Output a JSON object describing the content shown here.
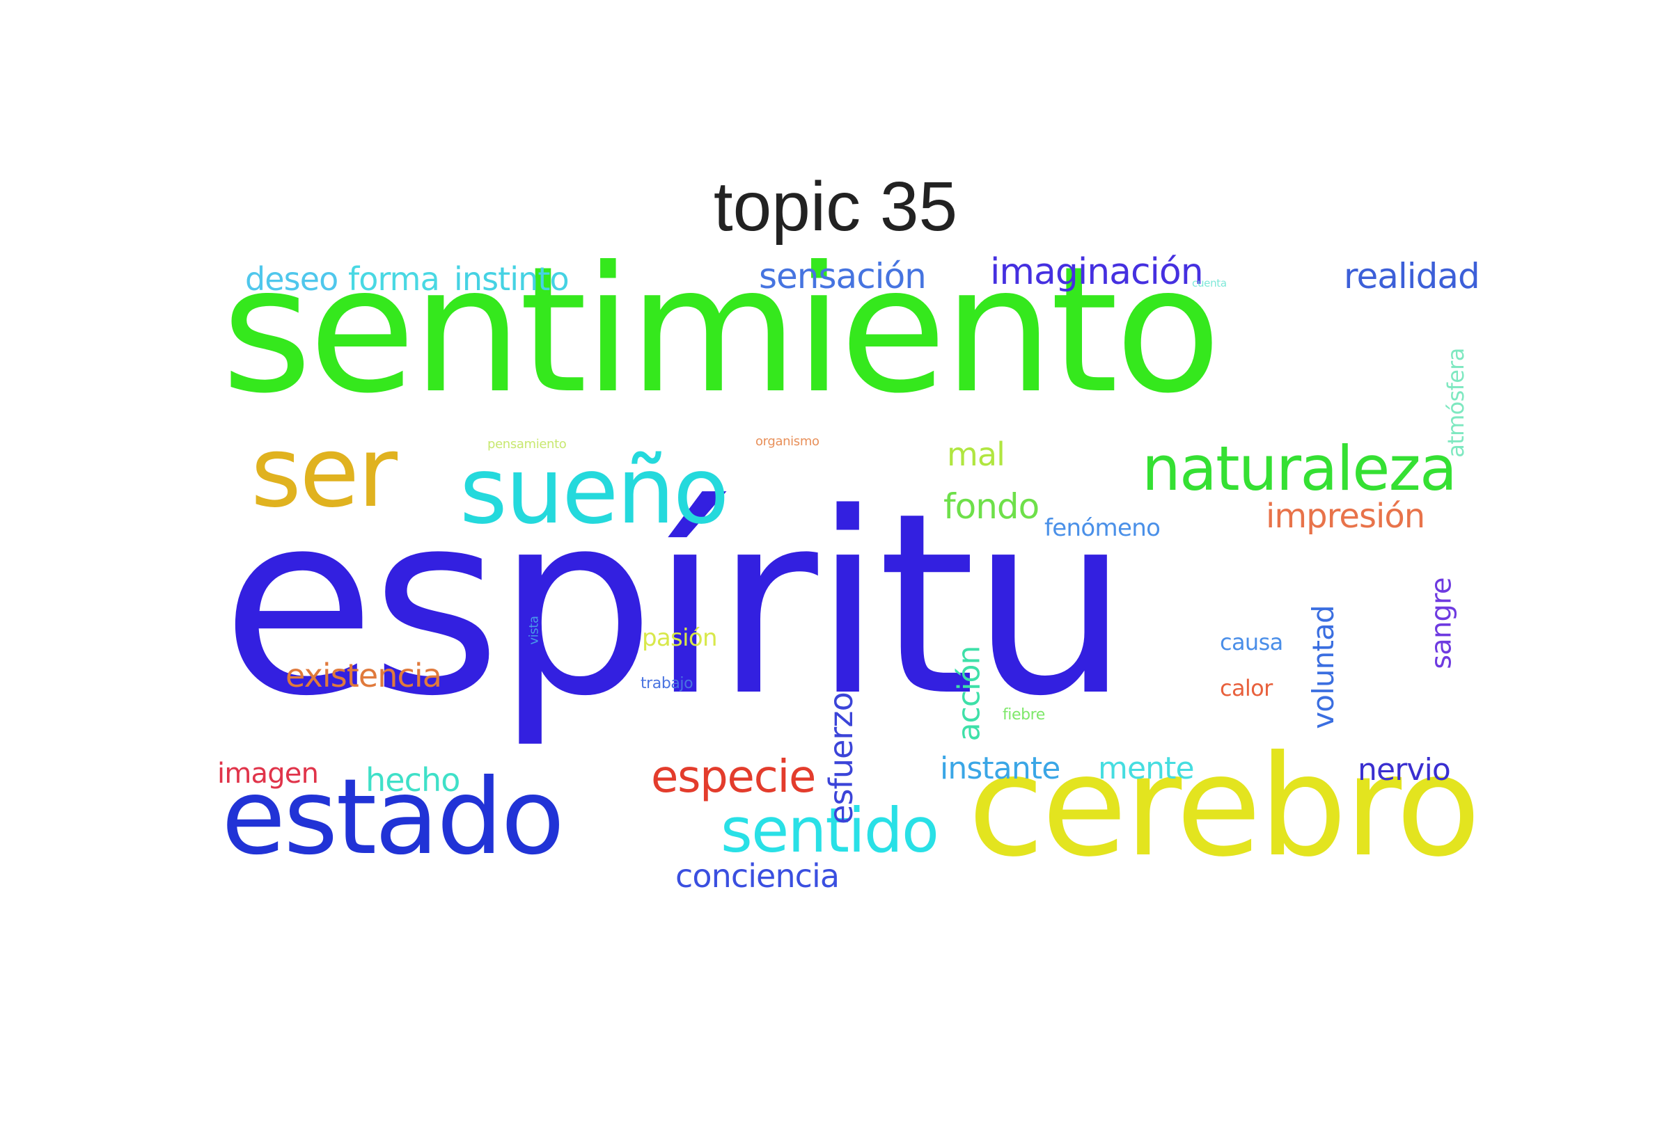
{
  "title": "topic 35",
  "words": [
    {
      "text": "espíritu",
      "color": "#3320e0"
    },
    {
      "text": "sentimiento",
      "color": "#35e81d"
    },
    {
      "text": "cerebro",
      "color": "#e3e41f"
    },
    {
      "text": "estado",
      "color": "#2133d6"
    },
    {
      "text": "ser",
      "color": "#e0b21f"
    },
    {
      "text": "sueño",
      "color": "#24d9dc"
    },
    {
      "text": "naturaleza",
      "color": "#35e033"
    },
    {
      "text": "sentido",
      "color": "#29e0e6"
    },
    {
      "text": "especie",
      "color": "#e33c2c"
    },
    {
      "text": "imaginación",
      "color": "#4530e0"
    },
    {
      "text": "sensación",
      "color": "#4674e0"
    },
    {
      "text": "realidad",
      "color": "#3c5fd8"
    },
    {
      "text": "deseo",
      "color": "#4fc7ec"
    },
    {
      "text": "forma",
      "color": "#49d8e3"
    },
    {
      "text": "instinto",
      "color": "#45d2e3"
    },
    {
      "text": "impresión",
      "color": "#e8734a"
    },
    {
      "text": "fondo",
      "color": "#6ee04a"
    },
    {
      "text": "mal",
      "color": "#b0e640"
    },
    {
      "text": "existencia",
      "color": "#e07a3c"
    },
    {
      "text": "conciencia",
      "color": "#3a4fe0"
    },
    {
      "text": "instante",
      "color": "#3aa6e6"
    },
    {
      "text": "mente",
      "color": "#46dde0"
    },
    {
      "text": "nervio",
      "color": "#3a2fd0"
    },
    {
      "text": "imagen",
      "color": "#e0344a"
    },
    {
      "text": "hecho",
      "color": "#3fe0c8"
    },
    {
      "text": "esfuerzo",
      "color": "#3b44d8"
    },
    {
      "text": "acción",
      "color": "#3ee0a8"
    },
    {
      "text": "voluntad",
      "color": "#3a6ee0"
    },
    {
      "text": "sangre",
      "color": "#6e3ae0"
    },
    {
      "text": "fenómeno",
      "color": "#4a90e8"
    },
    {
      "text": "pasión",
      "color": "#d8e84a"
    },
    {
      "text": "causa",
      "color": "#4a8ee8"
    },
    {
      "text": "calor",
      "color": "#e8603c"
    },
    {
      "text": "trabajo",
      "color": "#4a74e0"
    },
    {
      "text": "fiebre",
      "color": "#7ee86a"
    },
    {
      "text": "vista",
      "color": "#4a9ae8"
    },
    {
      "text": "atmósfera",
      "color": "#7ee8c0"
    },
    {
      "text": "pensamiento",
      "color": "#c8e870"
    },
    {
      "text": "organismo",
      "color": "#e8905a"
    },
    {
      "text": "cuenta",
      "color": "#7ee8d8"
    }
  ]
}
